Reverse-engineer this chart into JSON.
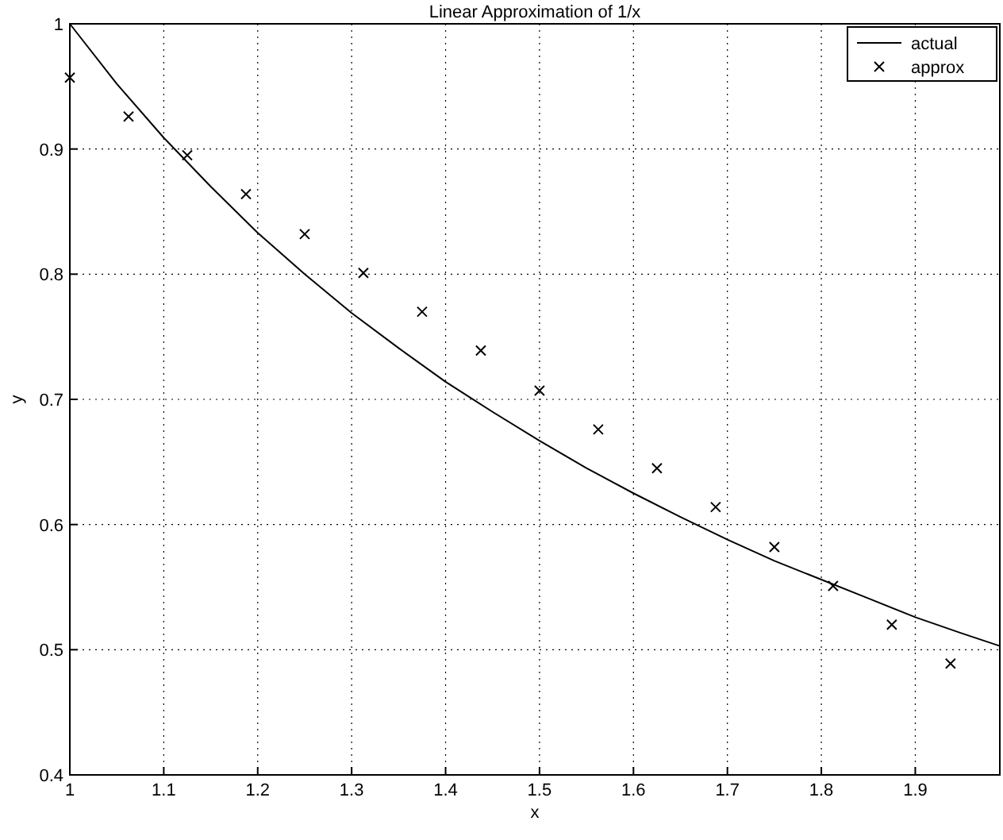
{
  "chart_data": {
    "type": "line",
    "title": "Linear Approximation of 1/x",
    "xlabel": "x",
    "ylabel": "y",
    "xlim": [
      1,
      1.99
    ],
    "ylim": [
      0.4,
      1
    ],
    "xticks": [
      1,
      1.1,
      1.2,
      1.3,
      1.4,
      1.5,
      1.6,
      1.7,
      1.8,
      1.9
    ],
    "yticks": [
      0.4,
      0.5,
      0.6,
      0.7,
      0.8,
      0.9,
      1
    ],
    "grid": true,
    "legend": "top right",
    "series": [
      {
        "name": "actual",
        "color": "#000000",
        "type": "line",
        "line_style": "solid",
        "marker": "none",
        "x": [
          1,
          1.05,
          1.1,
          1.15,
          1.2,
          1.25,
          1.3,
          1.35,
          1.4,
          1.45,
          1.5,
          1.55,
          1.6,
          1.65,
          1.7,
          1.75,
          1.8,
          1.85,
          1.9,
          1.95,
          1.99
        ],
        "values": [
          1,
          0.952,
          0.909,
          0.87,
          0.833,
          0.8,
          0.769,
          0.741,
          0.714,
          0.69,
          0.667,
          0.645,
          0.625,
          0.606,
          0.588,
          0.571,
          0.556,
          0.541,
          0.526,
          0.513,
          0.503
        ]
      },
      {
        "name": "approx",
        "color": "#000000",
        "type": "scatter",
        "marker": "cross",
        "x": [
          1,
          1.0625,
          1.125,
          1.1875,
          1.25,
          1.3125,
          1.375,
          1.4375,
          1.5,
          1.5625,
          1.625,
          1.6875,
          1.75,
          1.8125,
          1.875,
          1.9375
        ],
        "values": [
          0.957,
          0.926,
          0.895,
          0.864,
          0.832,
          0.801,
          0.77,
          0.739,
          0.707,
          0.676,
          0.645,
          0.614,
          0.582,
          0.551,
          0.52,
          0.489
        ]
      }
    ]
  }
}
